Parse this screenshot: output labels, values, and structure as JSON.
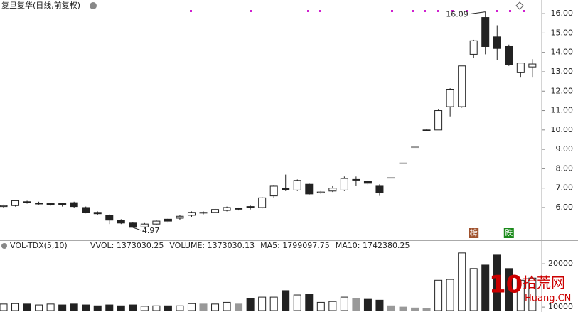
{
  "chart_data": [
    {
      "type": "candlestick",
      "title": "复旦复华(日线,前复权)",
      "open": [
        6.05,
        6.1,
        6.3,
        6.2,
        6.18,
        6.2,
        6.25,
        6.0,
        5.75,
        5.6,
        5.35,
        5.2,
        5.0,
        5.15,
        5.4,
        5.45,
        5.6,
        5.75,
        5.75,
        5.85,
        5.95,
        6.05,
        6.0,
        6.6,
        7.0,
        6.9,
        7.2,
        6.75,
        6.85,
        6.9,
        7.45,
        7.35,
        7.1,
        7.55,
        8.3,
        9.13,
        10.0,
        10.0,
        11.2,
        11.2,
        13.9,
        15.8,
        14.8,
        14.3,
        12.95,
        13.25
      ],
      "high": [
        6.15,
        6.4,
        6.35,
        6.3,
        6.25,
        6.25,
        6.3,
        6.05,
        5.8,
        5.65,
        5.4,
        5.25,
        5.2,
        5.35,
        5.45,
        5.6,
        5.8,
        5.8,
        5.95,
        6.05,
        6.0,
        6.1,
        6.55,
        7.15,
        7.7,
        7.45,
        7.25,
        6.85,
        7.1,
        7.6,
        7.6,
        7.4,
        7.2,
        7.55,
        8.3,
        9.13,
        10.05,
        11.05,
        12.15,
        13.3,
        14.65,
        16.09,
        15.4,
        14.4,
        13.45,
        13.65
      ],
      "low": [
        6.0,
        6.05,
        6.2,
        6.15,
        6.1,
        6.05,
        6.0,
        5.7,
        5.6,
        5.15,
        5.15,
        4.97,
        4.97,
        5.1,
        5.2,
        5.35,
        5.5,
        5.65,
        5.7,
        5.8,
        5.85,
        5.9,
        5.95,
        6.5,
        6.85,
        6.85,
        6.65,
        6.7,
        6.8,
        6.85,
        7.1,
        7.15,
        6.6,
        7.55,
        8.3,
        9.13,
        10.0,
        10.0,
        10.7,
        11.15,
        13.7,
        13.9,
        13.6,
        13.3,
        12.7,
        12.7
      ],
      "close": [
        6.1,
        6.35,
        6.25,
        6.22,
        6.2,
        6.15,
        6.05,
        5.75,
        5.68,
        5.35,
        5.2,
        4.98,
        5.15,
        5.3,
        5.3,
        5.55,
        5.75,
        5.75,
        5.9,
        6.0,
        5.95,
        6.0,
        6.5,
        7.1,
        6.9,
        7.4,
        6.7,
        6.8,
        7.0,
        7.5,
        7.45,
        7.25,
        6.75,
        7.55,
        8.3,
        9.13,
        10.0,
        11.0,
        12.1,
        13.3,
        14.6,
        14.3,
        14.2,
        13.35,
        13.45,
        13.4
      ],
      "ylim": [
        4.35,
        16.7
      ],
      "yticks": [
        {
          "value": 6,
          "label": "6.00"
        },
        {
          "value": 7,
          "label": "7.00"
        },
        {
          "value": 8,
          "label": "8.00"
        },
        {
          "value": 9,
          "label": "9.00"
        },
        {
          "value": 10,
          "label": "10.00"
        },
        {
          "value": 11,
          "label": "11.00"
        },
        {
          "value": 12,
          "label": "12.00"
        },
        {
          "value": 13,
          "label": "13.00"
        },
        {
          "value": 14,
          "label": "14.00"
        },
        {
          "value": 15,
          "label": "15.00"
        },
        {
          "value": 16,
          "label": "16.00"
        }
      ],
      "annotations": [
        {
          "text": "16.09",
          "index": 41
        },
        {
          "text": "4.97",
          "index": 11
        }
      ],
      "markers": [
        {
          "text": "榜",
          "index": 40,
          "color": "#a0522d"
        },
        {
          "text": "跌",
          "index": 43,
          "color": "#1a8a1a"
        }
      ],
      "grid": false
    },
    {
      "type": "bar",
      "title": "VOL-TDX(5,10)",
      "readouts": [
        "VVOL: 1373030.25",
        "VOLUME: 1373030.13",
        "MA5: 1799097.75",
        "MA10: 1742380.25"
      ],
      "values": [
        10700,
        10800,
        10700,
        10500,
        10700,
        10500,
        10700,
        10500,
        10300,
        10500,
        10300,
        10500,
        10200,
        10300,
        10300,
        10300,
        10800,
        10700,
        10700,
        11100,
        10700,
        12000,
        12300,
        12300,
        13800,
        12800,
        13000,
        11100,
        11300,
        12300,
        12000,
        11800,
        11600,
        10300,
        10000,
        9800,
        9700,
        16200,
        16400,
        22500,
        18900,
        19700,
        22000,
        18900,
        16200,
        16700
      ],
      "ylim": [
        9200,
        25100
      ],
      "yticks": [
        20000,
        10000
      ]
    }
  ],
  "watermark": {
    "logo": "10",
    "name": "拾荒网",
    "site": "Huang.CN"
  }
}
